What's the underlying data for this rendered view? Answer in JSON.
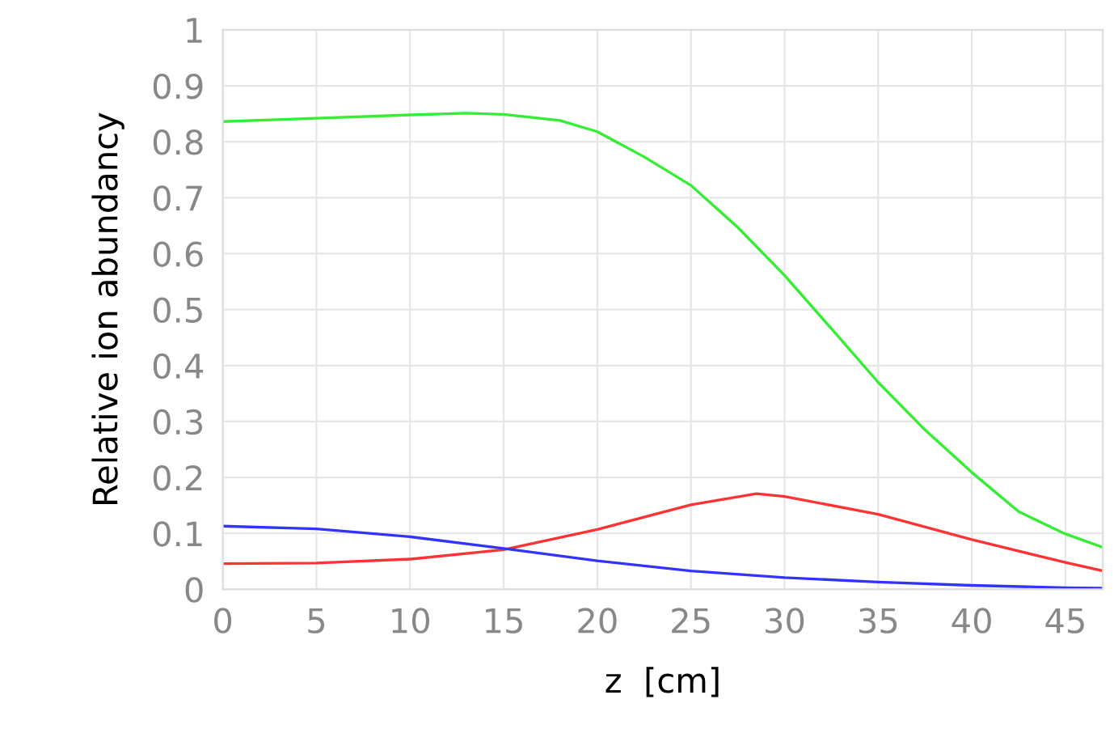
{
  "chart_data": {
    "type": "line",
    "xlabel": "z  [cm]",
    "ylabel": "Relative ion abundancy",
    "xlim": [
      0,
      47
    ],
    "ylim": [
      0,
      1
    ],
    "xticks": [
      0,
      5,
      10,
      15,
      20,
      25,
      30,
      35,
      40,
      45
    ],
    "yticks": [
      0,
      0.1,
      0.2,
      0.3,
      0.4,
      0.5,
      0.6,
      0.7,
      0.8,
      0.9,
      1
    ],
    "grid": true,
    "marker": "none",
    "line_style": "solid",
    "series": [
      {
        "color": "#33ee33",
        "x": [
          0,
          5,
          10,
          13,
          15,
          18,
          20,
          22.5,
          25,
          27.5,
          30,
          32.5,
          35,
          37.5,
          40,
          42.5,
          45,
          47
        ],
        "values": [
          0.836,
          0.842,
          0.848,
          0.851,
          0.849,
          0.838,
          0.818,
          0.773,
          0.722,
          0.647,
          0.561,
          0.466,
          0.37,
          0.285,
          0.209,
          0.139,
          0.099,
          0.075
        ]
      },
      {
        "color": "#ff3333",
        "x": [
          0,
          5,
          10,
          15,
          20,
          25,
          28.5,
          30,
          35,
          40,
          45,
          47
        ],
        "values": [
          0.046,
          0.047,
          0.054,
          0.071,
          0.107,
          0.151,
          0.171,
          0.166,
          0.134,
          0.089,
          0.048,
          0.033
        ]
      },
      {
        "color": "#3333ff",
        "x": [
          0,
          5,
          10,
          15,
          20,
          25,
          30,
          35,
          40,
          45,
          47
        ],
        "values": [
          0.113,
          0.108,
          0.094,
          0.073,
          0.051,
          0.033,
          0.021,
          0.013,
          0.007,
          0.003,
          0.002
        ]
      }
    ]
  }
}
